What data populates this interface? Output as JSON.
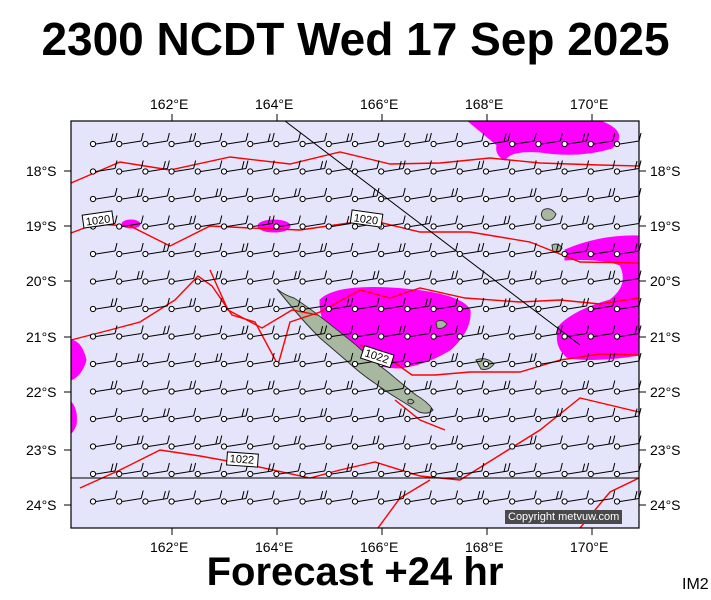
{
  "title": "2300 NCDT Wed 17 Sep 2025",
  "footer": "Forecast +24 hr",
  "image_code": "IM2",
  "copyright": "Copyright metvuw.com",
  "longitude_labels": [
    "162°E",
    "164°E",
    "166°E",
    "168°E",
    "170°E"
  ],
  "latitude_labels": [
    "18°S",
    "19°S",
    "20°S",
    "21°S",
    "22°S",
    "23°S",
    "24°S"
  ],
  "isobar_labels": [
    "1020",
    "1020",
    "1022",
    "1022"
  ],
  "colors": {
    "ocean": "#e4e4fa",
    "isobar": "#ff0000",
    "precip": "#ff00ff",
    "land": "#a8b8a0",
    "barb": "#000000",
    "copyright_bg": "#4a4a4a"
  }
}
